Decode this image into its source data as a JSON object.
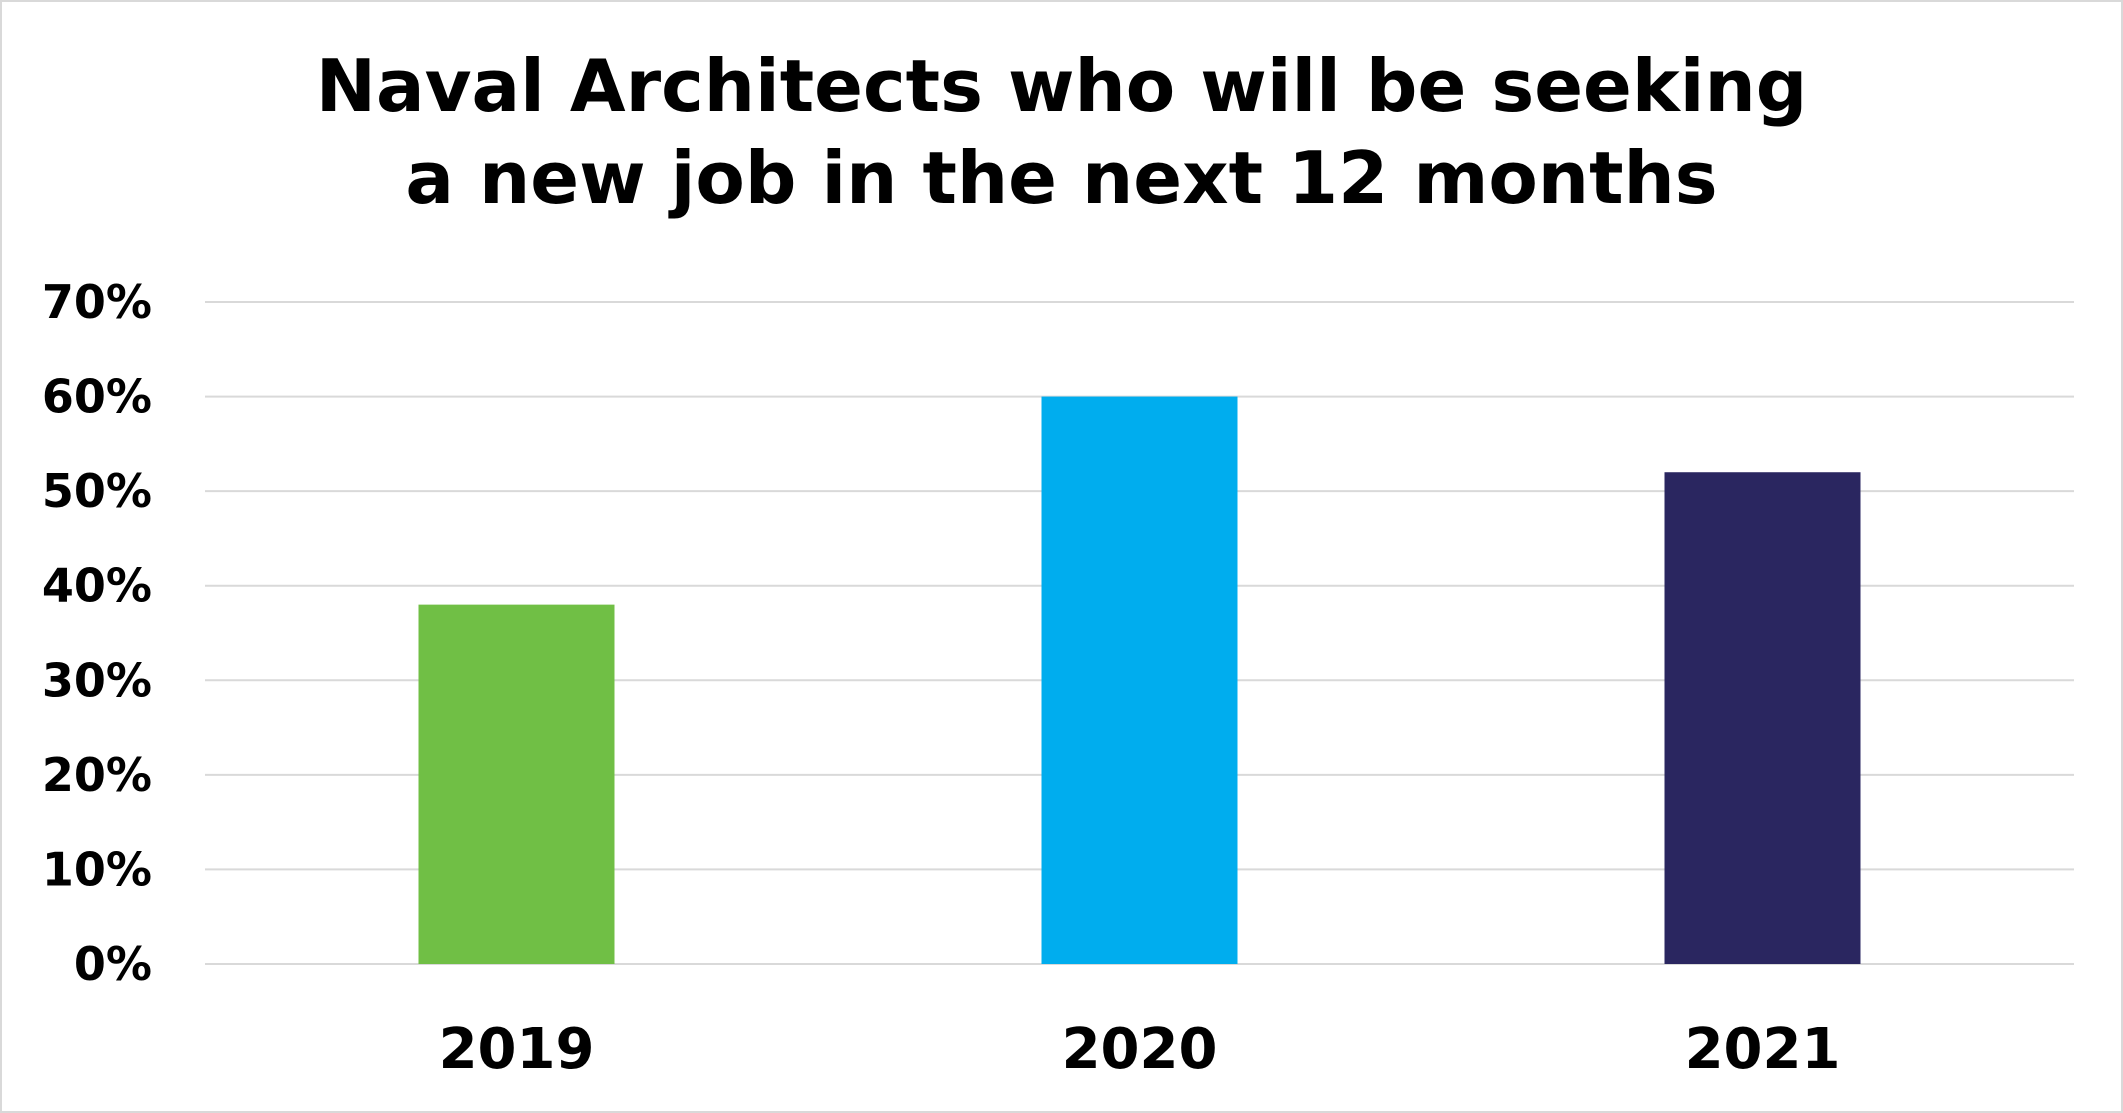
{
  "chart_data": {
    "type": "bar",
    "title_lines": [
      "Naval Architects who will be seeking",
      "a new job in the next 12 months"
    ],
    "categories": [
      "2019",
      "2020",
      "2021"
    ],
    "values": [
      0.38,
      0.6,
      0.52
    ],
    "colors": [
      "#70bf45",
      "#00adee",
      "#2a2660"
    ],
    "ylim": [
      0,
      0.7
    ],
    "yticks": [
      0,
      0.1,
      0.2,
      0.3,
      0.4,
      0.5,
      0.6,
      0.7
    ],
    "ytick_labels": [
      "0%",
      "10%",
      "20%",
      "30%",
      "40%",
      "50%",
      "60%",
      "70%"
    ],
    "grid": true,
    "grid_color": "#d9d9d9",
    "legend": "none",
    "xlabel": "",
    "ylabel": ""
  }
}
